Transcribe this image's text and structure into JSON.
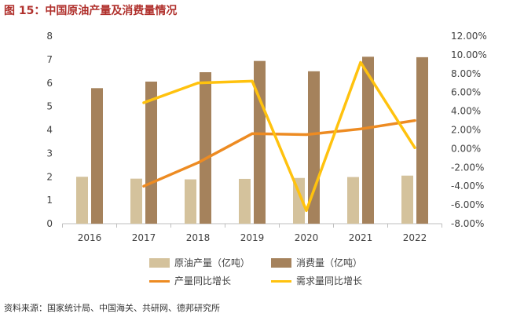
{
  "chart_data": {
    "type": "bar",
    "title": "图 15：中国原油产量及消费量情况",
    "categories": [
      "2016",
      "2017",
      "2018",
      "2019",
      "2020",
      "2021",
      "2022"
    ],
    "series": [
      {
        "name": "原油产量（亿吨）",
        "type": "bar",
        "axis": "left",
        "color": "#D4C29C",
        "values": [
          2.0,
          1.92,
          1.89,
          1.91,
          1.95,
          1.99,
          2.05
        ]
      },
      {
        "name": "消费量（亿吨）",
        "type": "bar",
        "axis": "left",
        "color": "#A5825C",
        "values": [
          5.78,
          6.06,
          6.46,
          6.94,
          6.5,
          7.12,
          7.1
        ]
      },
      {
        "name": "产量同比增长",
        "type": "line",
        "axis": "right",
        "color": "#ED8B22",
        "values": [
          null,
          -4.0,
          -1.5,
          1.6,
          1.5,
          2.1,
          3.0
        ]
      },
      {
        "name": "需求量同比增长",
        "type": "line",
        "axis": "right",
        "color": "#FFC20E",
        "values": [
          null,
          4.9,
          7.0,
          7.2,
          -6.6,
          9.2,
          0.1
        ]
      }
    ],
    "y_left": {
      "min": 0,
      "max": 8,
      "ticks": [
        0,
        1,
        2,
        3,
        4,
        5,
        6,
        7,
        8
      ],
      "tick_labels": [
        "0",
        "1",
        "2",
        "3",
        "4",
        "5",
        "6",
        "7",
        "8"
      ]
    },
    "y_right": {
      "min": -8,
      "max": 12,
      "ticks": [
        -8,
        -6,
        -4,
        -2,
        0,
        2,
        4,
        6,
        8,
        10,
        12
      ],
      "tick_labels": [
        "-8.00%",
        "-6.00%",
        "-4.00%",
        "-2.00%",
        "0.00%",
        "2.00%",
        "4.00%",
        "6.00%",
        "8.00%",
        "10.00%",
        "12.00%"
      ]
    },
    "legend": "bottom",
    "grid": false,
    "source": "资料来源：国家统计局、中国海关、共研网、德邦研究所"
  }
}
